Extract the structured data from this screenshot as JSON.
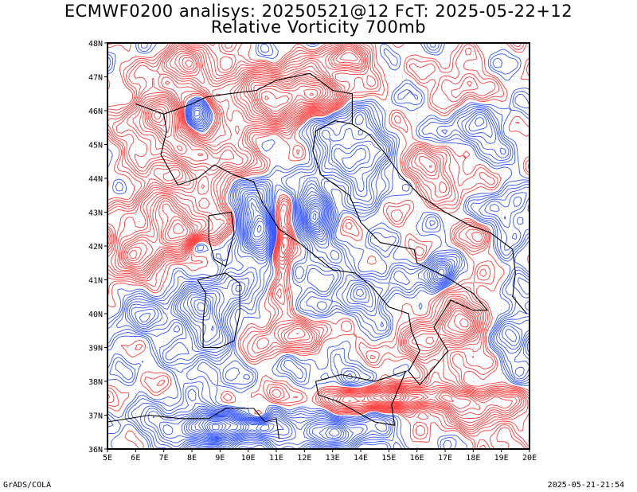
{
  "title": {
    "line1": "ECMWF0200 analisys: 20250521@12 FcT: 2025-05-22+12",
    "line2": "Relative Vorticity 700mb"
  },
  "map": {
    "lon_labels": [
      "5E",
      "6E",
      "7E",
      "8E",
      "9E",
      "10E",
      "11E",
      "12E",
      "13E",
      "14E",
      "15E",
      "16E",
      "17E",
      "18E",
      "19E",
      "20E"
    ],
    "lat_labels": [
      "48N",
      "47N",
      "46N",
      "45N",
      "44N",
      "43N",
      "42N",
      "41N",
      "40N",
      "39N",
      "38N",
      "37N",
      "36N"
    ],
    "lon_range": [
      5,
      20
    ],
    "lat_range": [
      36,
      48
    ],
    "field": "relative vorticity contours",
    "colors": {
      "positive": "#ff3b3b",
      "negative": "#3355ff",
      "coast": "#000000",
      "grid": "#9a9a9a"
    }
  },
  "footer": {
    "left": "GrADS/COLA",
    "right": "2025-05-21-21:54"
  }
}
